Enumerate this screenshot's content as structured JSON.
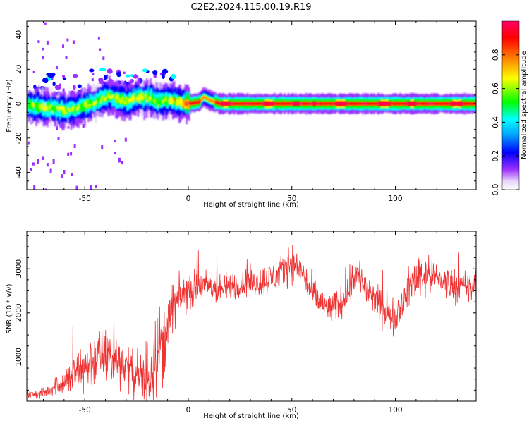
{
  "figure": {
    "title": "C2E2.2024.115.00.19.R19"
  },
  "chart_data": [
    {
      "type": "heatmap",
      "title": "",
      "xlabel": "Height of straight line (km)",
      "ylabel": "Frequency (Hz)",
      "xlim": [
        -78,
        139
      ],
      "ylim": [
        -50,
        48
      ],
      "xticks": [
        -50,
        0,
        50,
        100
      ],
      "yticks": [
        -40,
        -20,
        0,
        20,
        40
      ],
      "grid": false,
      "colormap": [
        "#ffffff",
        "#e8d4fa",
        "#9b30ff",
        "#0000ff",
        "#00ffff",
        "#00ff00",
        "#ffff00",
        "#ff8000",
        "#ff0000",
        "#ff0066"
      ],
      "ridge_track": {
        "x": [
          -78,
          -70,
          -65,
          -60,
          -55,
          -50,
          -45,
          -40,
          -35,
          -30,
          -25,
          -22,
          -20,
          -15,
          -10,
          -5,
          0,
          5,
          7,
          10,
          15,
          20,
          30,
          50,
          80,
          100,
          120,
          139
        ],
        "frequency": [
          -1,
          -2,
          -3,
          -4,
          -3,
          -1,
          1,
          4,
          3,
          1,
          4,
          3,
          4,
          1,
          2,
          1,
          0,
          1,
          4,
          2,
          0,
          0,
          0,
          0,
          0,
          0,
          0,
          0
        ],
        "peak_amplitude": [
          0.55,
          0.6,
          0.62,
          0.6,
          0.62,
          0.6,
          0.55,
          0.62,
          0.6,
          0.6,
          0.62,
          0.62,
          0.6,
          0.62,
          0.6,
          0.7,
          0.92,
          0.85,
          0.75,
          0.85,
          0.95,
          0.98,
          0.98,
          0.97,
          0.98,
          0.98,
          0.97,
          0.98
        ]
      }
    },
    {
      "type": "colorbar",
      "label": "Normalized spectral amplitude",
      "range": [
        0,
        1
      ],
      "ticks": [
        "0.0",
        "0.2",
        "0.4",
        "0.6",
        "0.8"
      ]
    },
    {
      "type": "line",
      "title": "",
      "xlabel": "Height of straight line (km)",
      "ylabel": "SNR (10 * v/v)",
      "xlim": [
        -78,
        139
      ],
      "ylim": [
        0,
        3850
      ],
      "xticks": [
        -50,
        0,
        50,
        100
      ],
      "yticks": [
        1000,
        2000,
        3000
      ],
      "grid": false,
      "series": [
        {
          "color": "#ee3333",
          "x": [
            -78,
            -72,
            -68,
            -64,
            -60,
            -56,
            -52,
            -48,
            -44,
            -40,
            -36,
            -32,
            -28,
            -24,
            -20,
            -18,
            -16,
            -14,
            -12,
            -10,
            -8,
            -5,
            -2,
            0,
            3,
            6,
            10,
            15,
            20,
            25,
            30,
            35,
            40,
            45,
            48,
            50,
            52,
            55,
            58,
            62,
            66,
            70,
            74,
            78,
            80,
            82,
            85,
            88,
            92,
            95,
            98,
            100,
            104,
            108,
            112,
            116,
            120,
            124,
            128,
            132,
            136,
            139
          ],
          "mean": [
            150,
            160,
            220,
            360,
            420,
            560,
            700,
            850,
            1000,
            1080,
            950,
            900,
            700,
            500,
            450,
            900,
            1200,
            1300,
            1200,
            1700,
            2100,
            2300,
            2400,
            2500,
            2550,
            2600,
            2600,
            2500,
            2600,
            2650,
            2700,
            2700,
            2800,
            2900,
            3100,
            3150,
            3100,
            2950,
            2600,
            2300,
            2150,
            2100,
            2250,
            2600,
            2900,
            2850,
            2600,
            2400,
            2200,
            2000,
            1900,
            1950,
            2300,
            2700,
            2900,
            2850,
            2800,
            2700,
            2650,
            2600,
            2550,
            2650
          ],
          "spread": [
            150,
            150,
            180,
            300,
            450,
            650,
            800,
            900,
            950,
            1000,
            900,
            800,
            700,
            600,
            1600,
            1600,
            1500,
            1400,
            1300,
            1000,
            800,
            700,
            650,
            600,
            600,
            550,
            550,
            500,
            500,
            450,
            500,
            550,
            550,
            550,
            600,
            650,
            550,
            500,
            550,
            550,
            550,
            550,
            550,
            600,
            800,
            700,
            600,
            550,
            550,
            550,
            550,
            550,
            550,
            700,
            900,
            600,
            550,
            550,
            550,
            550,
            550,
            600
          ]
        }
      ]
    }
  ]
}
